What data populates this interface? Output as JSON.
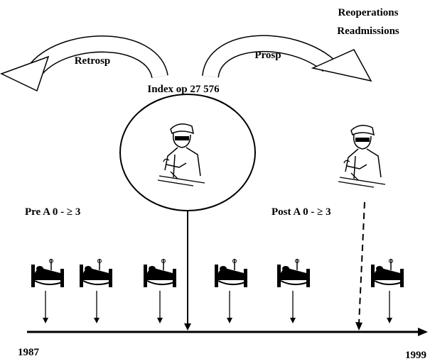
{
  "outcomes": [
    "Reoperations",
    "Readmissions"
  ],
  "arrows": {
    "retrospective": "Retrosp",
    "prospective": "Prosp"
  },
  "index_operation": "Index op 27 576",
  "pre_label": "Pre A 0 - ≥ 3",
  "post_label": "Post A 0 - ≥ 3",
  "timeline": {
    "start": "1987",
    "end": "1999"
  }
}
